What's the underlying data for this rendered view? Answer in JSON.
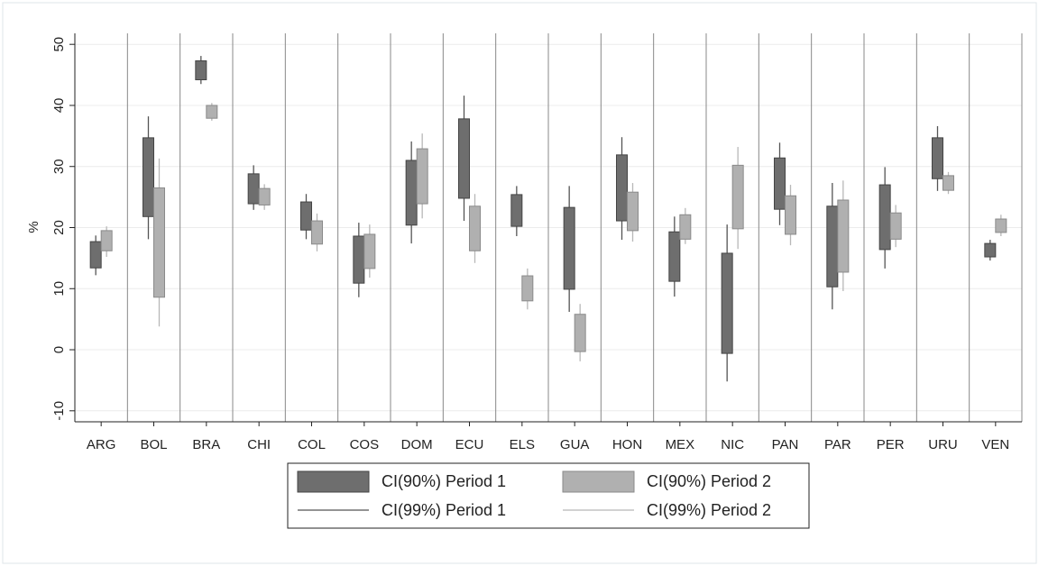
{
  "chart_data": {
    "type": "range",
    "ylabel": "%",
    "categories": [
      "ARG",
      "BOL",
      "BRA",
      "CHI",
      "COL",
      "COS",
      "DOM",
      "ECU",
      "ELS",
      "GUA",
      "HON",
      "MEX",
      "NIC",
      "PAN",
      "PAR",
      "PER",
      "URU",
      "VEN"
    ],
    "ylim": [
      -11.8,
      51.8
    ],
    "yticks": [
      -10,
      0,
      10,
      20,
      30,
      40,
      50
    ],
    "grid": true,
    "series": [
      {
        "name": "CI(90%) Period 1",
        "style": "box",
        "color": "#6e6e6e",
        "low": [
          13.4,
          21.8,
          44.2,
          23.9,
          19.6,
          10.9,
          20.4,
          24.8,
          20.2,
          9.9,
          21.1,
          11.2,
          -0.6,
          23.0,
          10.3,
          16.4,
          28.0,
          15.2
        ],
        "high": [
          17.7,
          34.7,
          47.3,
          28.8,
          24.2,
          18.6,
          31.0,
          37.8,
          25.4,
          23.3,
          31.9,
          19.3,
          15.8,
          31.4,
          23.5,
          27.0,
          34.7,
          17.4
        ]
      },
      {
        "name": "CI(90%) Period 2",
        "style": "box",
        "color": "#b0b0b0",
        "low": [
          16.2,
          8.6,
          37.9,
          23.7,
          17.3,
          13.3,
          23.9,
          16.2,
          8.0,
          -0.3,
          19.5,
          18.1,
          19.8,
          18.9,
          12.7,
          18.1,
          26.1,
          19.2
        ],
        "high": [
          19.5,
          26.5,
          40.0,
          26.4,
          21.1,
          18.9,
          32.9,
          23.5,
          12.1,
          5.8,
          25.8,
          22.1,
          30.2,
          25.2,
          24.5,
          22.4,
          28.5,
          21.4
        ]
      },
      {
        "name": "CI(99%) Period 1",
        "style": "line",
        "color": "#555555",
        "low": [
          12.2,
          18.1,
          43.5,
          22.9,
          18.1,
          8.6,
          17.4,
          21.1,
          18.6,
          6.2,
          18.0,
          8.7,
          -5.2,
          20.4,
          6.6,
          13.3,
          26.0,
          14.6
        ],
        "high": [
          18.7,
          38.2,
          48.1,
          30.2,
          25.5,
          20.8,
          34.1,
          41.6,
          26.8,
          26.8,
          34.8,
          21.8,
          20.5,
          33.9,
          27.3,
          29.9,
          36.6,
          18.0
        ]
      },
      {
        "name": "CI(99%) Period 2",
        "style": "line",
        "color": "#b8b8b8",
        "low": [
          15.2,
          3.8,
          37.5,
          22.9,
          16.1,
          11.8,
          21.5,
          14.2,
          6.6,
          -1.9,
          17.7,
          17.3,
          16.5,
          17.1,
          9.6,
          16.8,
          25.5,
          18.6
        ],
        "high": [
          20.2,
          31.3,
          40.4,
          27.1,
          22.3,
          20.5,
          35.4,
          25.5,
          13.3,
          7.5,
          27.3,
          23.2,
          33.2,
          27.0,
          27.7,
          23.7,
          29.1,
          22.1
        ]
      }
    ]
  }
}
